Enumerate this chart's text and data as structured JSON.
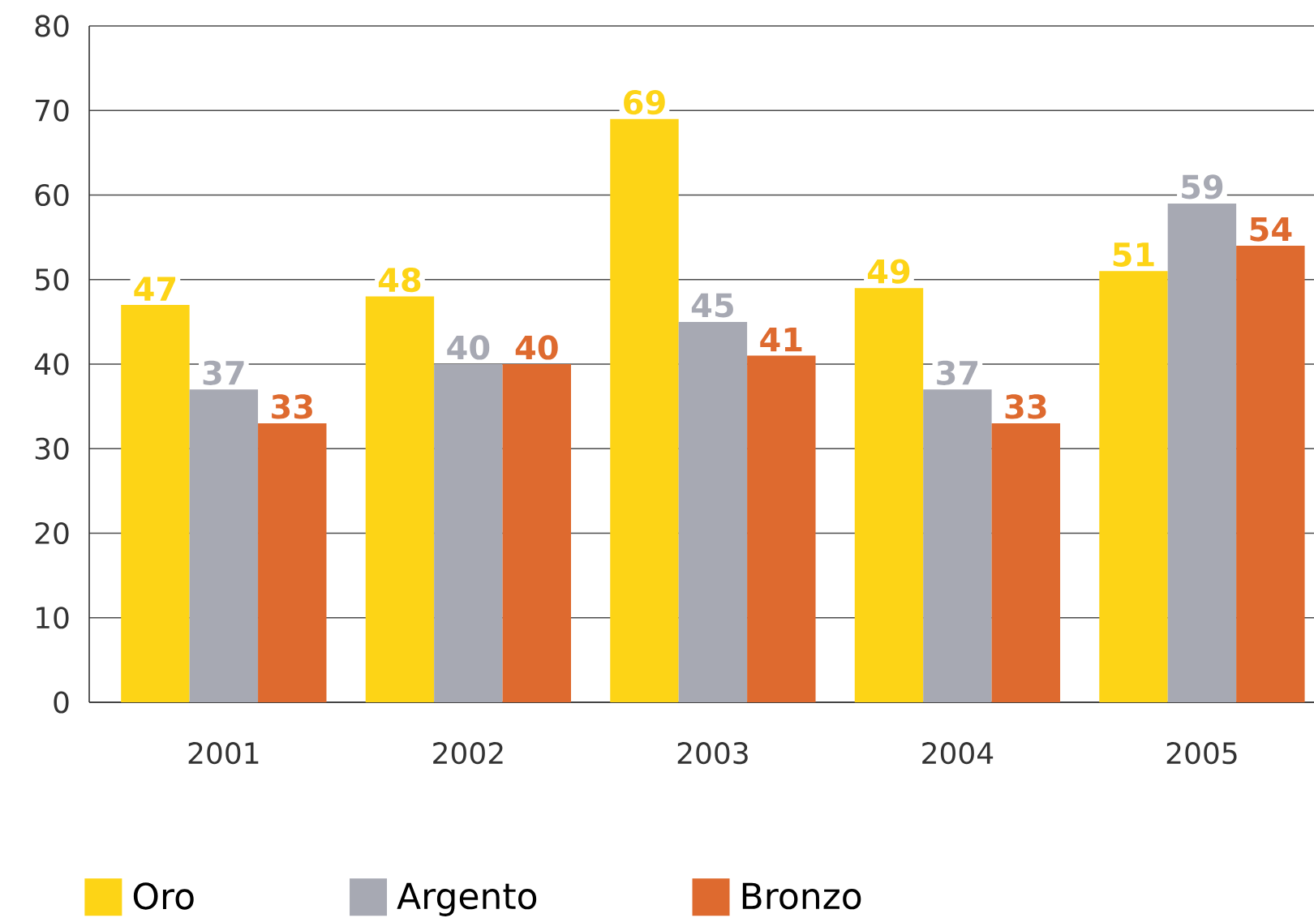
{
  "chart_data": {
    "type": "bar",
    "categories": [
      "2001",
      "2002",
      "2003",
      "2004",
      "2005"
    ],
    "series": [
      {
        "name": "Oro",
        "color": "#fdd416",
        "values": [
          47,
          48,
          69,
          49,
          51
        ]
      },
      {
        "name": "Argento",
        "color": "#a7a9b3",
        "values": [
          37,
          40,
          45,
          37,
          59
        ]
      },
      {
        "name": "Bronzo",
        "color": "#de6a2f",
        "values": [
          33,
          40,
          41,
          33,
          54
        ]
      }
    ],
    "ylim": [
      0,
      80
    ],
    "yticks": [
      0,
      10,
      20,
      30,
      40,
      50,
      60,
      70,
      80
    ],
    "grid": "y",
    "legend": "bottom",
    "data_labels": true
  }
}
